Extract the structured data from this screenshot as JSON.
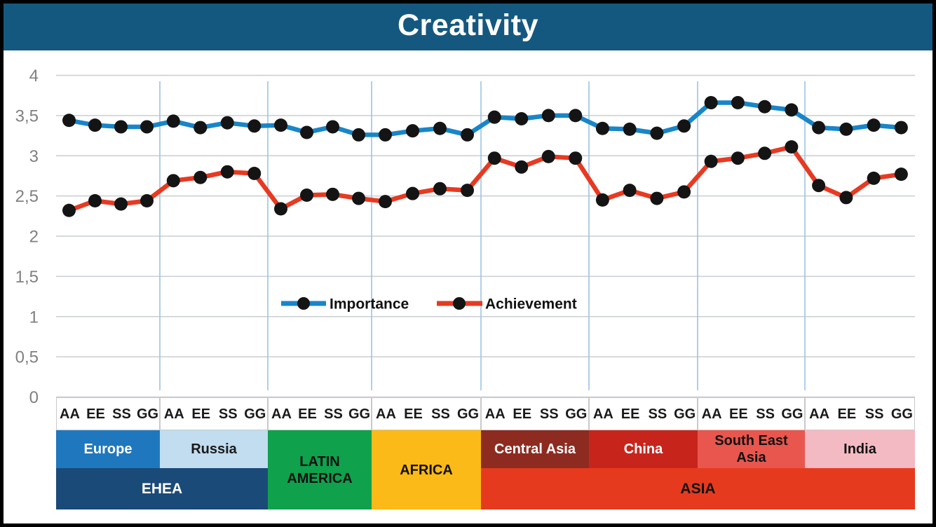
{
  "title": "Creativity",
  "colors": {
    "title_bar": "#15587F",
    "background": "#FFFFFF",
    "frame_border": "#000000",
    "gridline": "#C9CDD2",
    "group_separator": "#9DC3E6",
    "axis_label": "#808080",
    "marker": "#141414",
    "importance_line": "#1886C8",
    "achievement_line": "#E73A22"
  },
  "chart_data": {
    "type": "line",
    "title": "Creativity",
    "ylim": [
      0,
      4
    ],
    "y_step": 0.5,
    "y_tick_labels": [
      "4",
      "3,5",
      "3",
      "2,5",
      "2",
      "1,5",
      "1",
      "0,5",
      "0"
    ],
    "point_labels": [
      "AA",
      "EE",
      "SS",
      "GG"
    ],
    "grid": "horizontal-and-group-separators",
    "legend_position": "center-of-plot",
    "group_names": [
      "Europe",
      "Russia",
      "Latin America",
      "Africa",
      "Central Asia",
      "China",
      "South East Asia",
      "India"
    ],
    "series": [
      {
        "name": "Importance",
        "color": "#1886C8",
        "values": [
          [
            3.44,
            3.38,
            3.36,
            3.36
          ],
          [
            3.43,
            3.35,
            3.41,
            3.37
          ],
          [
            3.38,
            3.29,
            3.36,
            3.26
          ],
          [
            3.26,
            3.31,
            3.34,
            3.26
          ],
          [
            3.48,
            3.46,
            3.5,
            3.5
          ],
          [
            3.34,
            3.33,
            3.28,
            3.37
          ],
          [
            3.66,
            3.66,
            3.61,
            3.57
          ],
          [
            3.35,
            3.33,
            3.38,
            3.35
          ]
        ]
      },
      {
        "name": "Achievement",
        "color": "#E73A22",
        "values": [
          [
            2.32,
            2.44,
            2.4,
            2.44
          ],
          [
            2.69,
            2.73,
            2.8,
            2.78
          ],
          [
            2.34,
            2.51,
            2.52,
            2.47
          ],
          [
            2.43,
            2.53,
            2.59,
            2.57
          ],
          [
            2.97,
            2.86,
            2.99,
            2.97
          ],
          [
            2.45,
            2.57,
            2.47,
            2.55
          ],
          [
            2.93,
            2.97,
            3.03,
            3.11
          ],
          [
            2.63,
            2.48,
            2.72,
            2.77
          ]
        ]
      }
    ]
  },
  "legend": {
    "entries": [
      {
        "label": "Importance",
        "color": "#1886C8"
      },
      {
        "label": "Achievement",
        "color": "#E73A22"
      }
    ]
  },
  "regions": {
    "groups": [
      {
        "id": "europe",
        "label": "Europe",
        "color": "#1F78BE",
        "text_color": "#FFFFFF",
        "rows": 1
      },
      {
        "id": "russia",
        "label": "Russia",
        "color": "#C2DCF0",
        "text_color": "#1A1A1A",
        "rows": 1
      },
      {
        "id": "latin-america",
        "label": "LATIN\nAMERICA",
        "color": "#0FA14C",
        "text_color": "#111111",
        "rows": 2
      },
      {
        "id": "africa",
        "label": "AFRICA",
        "color": "#FBBA17",
        "text_color": "#111111",
        "rows": 2
      },
      {
        "id": "central-asia",
        "label": "Central Asia",
        "color": "#8E2B20",
        "text_color": "#FFFFFF",
        "rows": 1
      },
      {
        "id": "china",
        "label": "China",
        "color": "#C7251C",
        "text_color": "#FFFFFF",
        "rows": 1
      },
      {
        "id": "south-east-asia",
        "label": "South East\nAsia",
        "color": "#E9564E",
        "text_color": "#111111",
        "rows": 1
      },
      {
        "id": "india",
        "label": "India",
        "color": "#F4BAC4",
        "text_color": "#111111",
        "rows": 1
      }
    ],
    "parents": [
      {
        "id": "ehea",
        "label": "EHEA",
        "color": "#1A4A78",
        "text_color": "#FFFFFF",
        "from": 0,
        "to": 1
      },
      {
        "id": "asia",
        "label": "ASIA",
        "color": "#E63A1E",
        "text_color": "#111111",
        "from": 4,
        "to": 7
      }
    ]
  }
}
